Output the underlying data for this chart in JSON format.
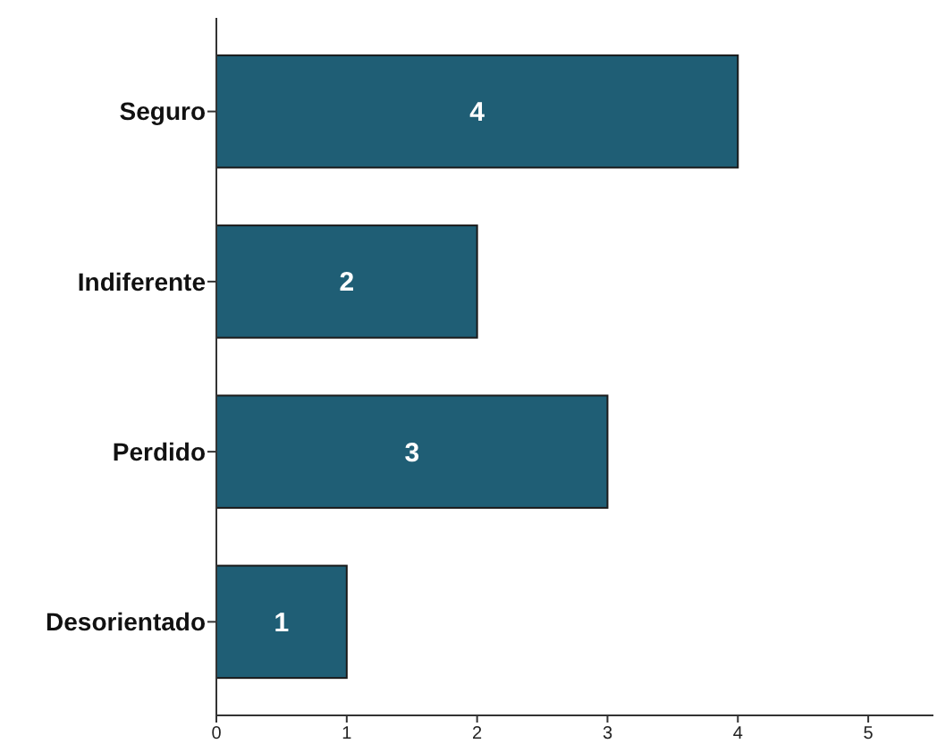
{
  "chart_data": {
    "type": "bar",
    "orientation": "horizontal",
    "categories": [
      "Seguro",
      "Indiferente",
      "Perdido",
      "Desorientado"
    ],
    "values": [
      4,
      2,
      3,
      1
    ],
    "color": "#1f5e75",
    "data_labels": true,
    "xlim": [
      0,
      5.5
    ],
    "xticks": [
      0,
      1,
      2,
      3,
      4,
      5
    ],
    "grid": false
  }
}
